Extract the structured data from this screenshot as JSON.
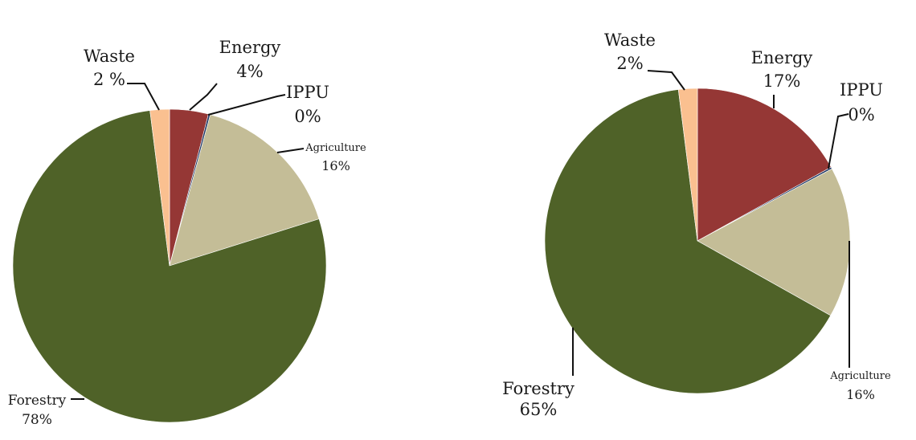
{
  "chart_data": [
    {
      "type": "pie",
      "title": "",
      "slices": [
        {
          "name": "Energy",
          "value": 4,
          "label_name": "Energy",
          "label_value": "4%",
          "color": "#953735"
        },
        {
          "name": "IPPU",
          "value": 0.2,
          "label_name": "IPPU",
          "label_value": "0%",
          "color": "#1f3864"
        },
        {
          "name": "Agriculture",
          "value": 16,
          "label_name": "Agriculture",
          "label_value": "16%",
          "color": "#c4bd97"
        },
        {
          "name": "Forestry",
          "value": 78,
          "label_name": "Forestry",
          "label_value": "78%",
          "color": "#4f6228"
        },
        {
          "name": "Waste",
          "value": 2,
          "label_name": "Waste",
          "label_value": "2 %",
          "color": "#fac090"
        }
      ]
    },
    {
      "type": "pie",
      "title": "",
      "slices": [
        {
          "name": "Energy",
          "value": 17,
          "label_name": "Energy",
          "label_value": "17%",
          "color": "#953735"
        },
        {
          "name": "IPPU",
          "value": 0.2,
          "label_name": "IPPU",
          "label_value": "0%",
          "color": "#1f3864"
        },
        {
          "name": "Agriculture",
          "value": 16,
          "label_name": "Agriculture",
          "label_value": "16%",
          "color": "#c4bd97"
        },
        {
          "name": "Forestry",
          "value": 65,
          "label_name": "Forestry",
          "label_value": "65%",
          "color": "#4f6228"
        },
        {
          "name": "Waste",
          "value": 2,
          "label_name": "Waste",
          "label_value": "2%",
          "color": "#fac090"
        }
      ]
    }
  ]
}
